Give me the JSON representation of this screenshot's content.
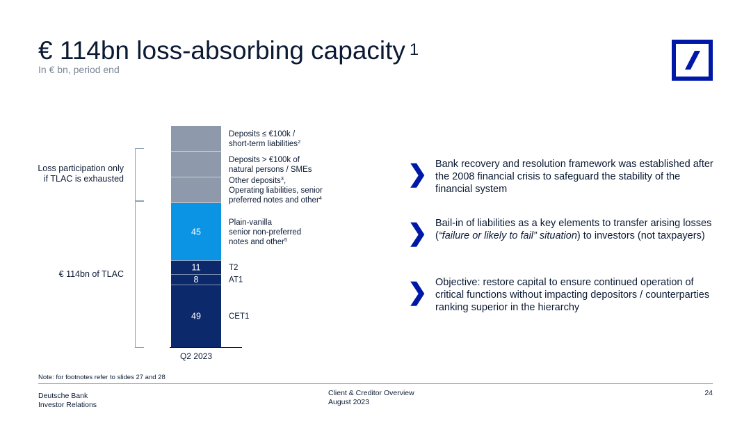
{
  "header": {
    "title": "€ 114bn loss-absorbing capacity",
    "title_sup": "1",
    "subtitle": "In € bn, period end"
  },
  "logo": {
    "icon": "deutsche-bank-slash-logo",
    "color": "#0018a8"
  },
  "side_labels": {
    "loss_participation": "Loss participation only\nif TLAC is exhausted",
    "tlac": "€ 114bn of TLAC"
  },
  "chart_data": {
    "type": "bar",
    "stacked": true,
    "categories": [
      "Q2 2023"
    ],
    "segments": [
      {
        "key": "cet1",
        "value": 49,
        "value_label": "49",
        "color": "#0c2a6b",
        "label_lines": [
          {
            "t": "CET1"
          }
        ]
      },
      {
        "key": "at1",
        "value": 8,
        "value_label": "8",
        "color": "#0c2a6b",
        "label_lines": [
          {
            "t": "AT1"
          }
        ]
      },
      {
        "key": "t2",
        "value": 11,
        "value_label": "11",
        "color": "#0c2a6b",
        "label_lines": [
          {
            "t": "T2"
          }
        ]
      },
      {
        "key": "snp",
        "value": 45,
        "value_label": "45",
        "color": "#0b93e4",
        "label_lines": [
          {
            "t": "Plain-vanilla"
          },
          {
            "t": "senior non-preferred"
          },
          {
            "t": "notes and other",
            "sup": "5"
          }
        ]
      },
      {
        "key": "other_deposits",
        "value": null,
        "value_label": "",
        "color": "#8e9aab",
        "label_lines": [
          {
            "t": "Other deposits",
            "sup": "3",
            "after": ","
          },
          {
            "t": "Operating liabilities, senior"
          },
          {
            "t": "preferred notes and other",
            "sup": "4"
          }
        ]
      },
      {
        "key": "deposits_gt_100k",
        "value": null,
        "value_label": "",
        "color": "#8e9aab",
        "label_lines": [
          {
            "t": "Deposits > €100k of"
          },
          {
            "t": "natural persons / SMEs"
          }
        ]
      },
      {
        "key": "deposits_le_100k",
        "value": null,
        "value_label": "",
        "color": "#8e9aab",
        "label_lines": [
          {
            "t": "Deposits ≤ €100k /"
          },
          {
            "t": "short-term liabilities",
            "sup": "2"
          }
        ]
      }
    ]
  },
  "bullets": [
    {
      "icon": "chevron-right-icon",
      "parts": [
        {
          "t": "Bank recovery and resolution framework was established after the 2008 financial crisis to safeguard the stability of the financial system"
        }
      ]
    },
    {
      "icon": "chevron-right-icon",
      "parts": [
        {
          "t": "Bail-in of liabilities as a key elements to transfer arising losses ("
        },
        {
          "t": "“failure or likely to fail” situation",
          "em": true
        },
        {
          "t": ") to investors (not taxpayers)"
        }
      ]
    },
    {
      "icon": "chevron-right-icon",
      "parts": [
        {
          "t": "Objective: restore capital to ensure continued operation of critical functions without impacting depositors / counterparties ranking superior in the hierarchy"
        }
      ]
    }
  ],
  "footer": {
    "note": "Note: for footnotes refer to slides 27 and 28",
    "org_line1": "Deutsche Bank",
    "org_line2": "Investor Relations",
    "doc_line1": "Client & Creditor Overview",
    "doc_line2": "August 2023",
    "page": "24"
  }
}
